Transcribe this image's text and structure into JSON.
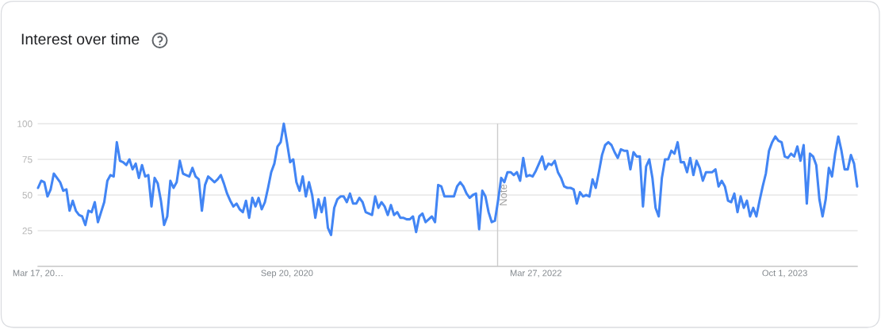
{
  "chart_data": {
    "type": "line",
    "title": "Interest over time",
    "x": [
      "2019-03-17",
      "2019-03-24",
      "2019-03-31",
      "2019-04-07",
      "2019-04-14",
      "2019-04-21",
      "2019-04-28",
      "2019-05-05",
      "2019-05-12",
      "2019-05-19",
      "2019-05-26",
      "2019-06-02",
      "2019-06-09",
      "2019-06-16",
      "2019-06-23",
      "2019-06-30",
      "2019-07-07",
      "2019-07-14",
      "2019-07-21",
      "2019-07-28",
      "2019-08-04",
      "2019-08-11",
      "2019-08-18",
      "2019-08-25",
      "2019-09-01",
      "2019-09-08",
      "2019-09-15",
      "2019-09-22",
      "2019-09-29",
      "2019-10-06",
      "2019-10-13",
      "2019-10-20",
      "2019-10-27",
      "2019-11-03",
      "2019-11-10",
      "2019-11-17",
      "2019-11-24",
      "2019-12-01",
      "2019-12-08",
      "2019-12-15",
      "2019-12-22",
      "2019-12-29",
      "2020-01-05",
      "2020-01-12",
      "2020-01-19",
      "2020-01-26",
      "2020-02-02",
      "2020-02-09",
      "2020-02-16",
      "2020-02-23",
      "2020-03-01",
      "2020-03-08",
      "2020-03-15",
      "2020-03-22",
      "2020-03-29",
      "2020-04-05",
      "2020-04-12",
      "2020-04-19",
      "2020-04-26",
      "2020-05-03",
      "2020-05-10",
      "2020-05-17",
      "2020-05-24",
      "2020-05-31",
      "2020-06-07",
      "2020-06-14",
      "2020-06-21",
      "2020-06-28",
      "2020-07-05",
      "2020-07-12",
      "2020-07-19",
      "2020-07-26",
      "2020-08-02",
      "2020-08-09",
      "2020-08-16",
      "2020-08-23",
      "2020-08-30",
      "2020-09-06",
      "2020-09-13",
      "2020-09-20",
      "2020-09-27",
      "2020-10-04",
      "2020-10-11",
      "2020-10-18",
      "2020-10-25",
      "2020-11-01",
      "2020-11-08",
      "2020-11-15",
      "2020-11-22",
      "2020-11-29",
      "2020-12-06",
      "2020-12-13",
      "2020-12-20",
      "2020-12-27",
      "2021-01-03",
      "2021-01-10",
      "2021-01-17",
      "2021-01-24",
      "2021-01-31",
      "2021-02-07",
      "2021-02-14",
      "2021-02-21",
      "2021-02-28",
      "2021-03-07",
      "2021-03-14",
      "2021-03-21",
      "2021-03-28",
      "2021-04-04",
      "2021-04-11",
      "2021-04-18",
      "2021-04-25",
      "2021-05-02",
      "2021-05-09",
      "2021-05-16",
      "2021-05-23",
      "2021-05-30",
      "2021-06-06",
      "2021-06-13",
      "2021-06-20",
      "2021-06-27",
      "2021-07-04",
      "2021-07-11",
      "2021-07-18",
      "2021-07-25",
      "2021-08-01",
      "2021-08-08",
      "2021-08-15",
      "2021-08-22",
      "2021-08-29",
      "2021-09-05",
      "2021-09-12",
      "2021-09-19",
      "2021-09-26",
      "2021-10-03",
      "2021-10-10",
      "2021-10-17",
      "2021-10-24",
      "2021-10-31",
      "2021-11-07",
      "2021-11-14",
      "2021-11-21",
      "2021-11-28",
      "2021-12-05",
      "2021-12-12",
      "2021-12-19",
      "2021-12-26",
      "2022-01-02",
      "2022-01-09",
      "2022-01-16",
      "2022-01-23",
      "2022-01-30",
      "2022-02-06",
      "2022-02-13",
      "2022-02-20",
      "2022-02-27",
      "2022-03-06",
      "2022-03-13",
      "2022-03-20",
      "2022-03-27",
      "2022-04-03",
      "2022-04-10",
      "2022-04-17",
      "2022-04-24",
      "2022-05-01",
      "2022-05-08",
      "2022-05-15",
      "2022-05-22",
      "2022-05-29",
      "2022-06-05",
      "2022-06-12",
      "2022-06-19",
      "2022-06-26",
      "2022-07-03",
      "2022-07-10",
      "2022-07-17",
      "2022-07-24",
      "2022-07-31",
      "2022-08-07",
      "2022-08-14",
      "2022-08-21",
      "2022-08-28",
      "2022-09-04",
      "2022-09-11",
      "2022-09-18",
      "2022-09-25",
      "2022-10-02",
      "2022-10-09",
      "2022-10-16",
      "2022-10-23",
      "2022-10-30",
      "2022-11-06",
      "2022-11-13",
      "2022-11-20",
      "2022-11-27",
      "2022-12-04",
      "2022-12-11",
      "2022-12-18",
      "2022-12-25",
      "2023-01-01",
      "2023-01-08",
      "2023-01-15",
      "2023-01-22",
      "2023-01-29",
      "2023-02-05",
      "2023-02-12",
      "2023-02-19",
      "2023-02-26",
      "2023-03-05",
      "2023-03-12",
      "2023-03-19",
      "2023-03-26",
      "2023-04-02",
      "2023-04-09",
      "2023-04-16",
      "2023-04-23",
      "2023-04-30",
      "2023-05-07",
      "2023-05-14",
      "2023-05-21",
      "2023-05-28",
      "2023-06-04",
      "2023-06-11",
      "2023-06-18",
      "2023-06-25",
      "2023-07-02",
      "2023-07-09",
      "2023-07-16",
      "2023-07-23",
      "2023-07-30",
      "2023-08-06",
      "2023-08-13",
      "2023-08-20",
      "2023-08-27",
      "2023-09-03",
      "2023-09-10",
      "2023-09-17",
      "2023-09-24",
      "2023-10-01",
      "2023-10-08",
      "2023-10-15",
      "2023-10-22",
      "2023-10-29",
      "2023-11-05",
      "2023-11-12",
      "2023-11-19",
      "2023-11-26",
      "2023-12-03",
      "2023-12-10",
      "2023-12-17",
      "2023-12-24",
      "2023-12-31",
      "2024-01-07",
      "2024-01-14",
      "2024-01-21",
      "2024-01-28",
      "2024-02-04",
      "2024-02-11",
      "2024-02-18",
      "2024-02-25",
      "2024-03-03",
      "2024-03-10"
    ],
    "series": [
      {
        "color": "#4285f4",
        "values": [
          55,
          60,
          59,
          49,
          54,
          65,
          62,
          59,
          53,
          54,
          39,
          46,
          39,
          36,
          35,
          29,
          39,
          38,
          45,
          31,
          38,
          45,
          60,
          64,
          63,
          87,
          74,
          73,
          71,
          75,
          68,
          72,
          62,
          71,
          63,
          64,
          42,
          62,
          58,
          46,
          29,
          35,
          60,
          55,
          59,
          74,
          65,
          64,
          63,
          69,
          63,
          61,
          39,
          57,
          63,
          61,
          59,
          61,
          64,
          58,
          51,
          46,
          42,
          44,
          40,
          38,
          46,
          34,
          48,
          42,
          48,
          40,
          45,
          55,
          66,
          72,
          84,
          87,
          100,
          87,
          73,
          75,
          59,
          53,
          63,
          49,
          59,
          50,
          34,
          47,
          38,
          48,
          27,
          22,
          41,
          47,
          49,
          49,
          45,
          51,
          44,
          44,
          48,
          45,
          38,
          37,
          36,
          49,
          41,
          45,
          42,
          36,
          43,
          36,
          38,
          34,
          34,
          33,
          33,
          35,
          24,
          35,
          37,
          31,
          33,
          35,
          31,
          57,
          56,
          49,
          49,
          49,
          49,
          56,
          59,
          56,
          51,
          48,
          50,
          51,
          26,
          53,
          49,
          38,
          31,
          32,
          46,
          62,
          59,
          66,
          66,
          64,
          66,
          60,
          76,
          63,
          64,
          63,
          67,
          72,
          77,
          68,
          72,
          71,
          74,
          66,
          62,
          56,
          55,
          55,
          54,
          44,
          52,
          49,
          50,
          49,
          61,
          55,
          66,
          78,
          85,
          87,
          85,
          80,
          76,
          82,
          81,
          81,
          68,
          80,
          77,
          77,
          42,
          70,
          75,
          62,
          41,
          35,
          62,
          75,
          75,
          81,
          79,
          87,
          73,
          73,
          66,
          76,
          64,
          74,
          69,
          60,
          66,
          66,
          66,
          68,
          56,
          60,
          56,
          46,
          45,
          51,
          38,
          49,
          41,
          46,
          35,
          41,
          35,
          46,
          56,
          65,
          81,
          87,
          91,
          88,
          87,
          77,
          76,
          79,
          77,
          84,
          74,
          85,
          44,
          79,
          77,
          71,
          47,
          35,
          47,
          69,
          63,
          79,
          91,
          81,
          68,
          68,
          78,
          72,
          56
        ]
      }
    ],
    "xlim": [
      "2019-03-17",
      "2024-03-10"
    ],
    "xticks": [
      {
        "value": "2019-03-17",
        "label": "Mar 17, 20…"
      },
      {
        "value": "2020-09-20",
        "label": "Sep 20, 2020"
      },
      {
        "value": "2022-03-27",
        "label": "Mar 27, 2022"
      },
      {
        "value": "2023-10-01",
        "label": "Oct 1, 2023"
      }
    ],
    "ylim": [
      0,
      100
    ],
    "yticks": [
      25,
      50,
      75,
      100
    ],
    "grid": "y",
    "ref_lines": [
      {
        "axis": "x",
        "value": "2022-01-01",
        "label": "Note",
        "color": "#cccccc"
      }
    ]
  }
}
